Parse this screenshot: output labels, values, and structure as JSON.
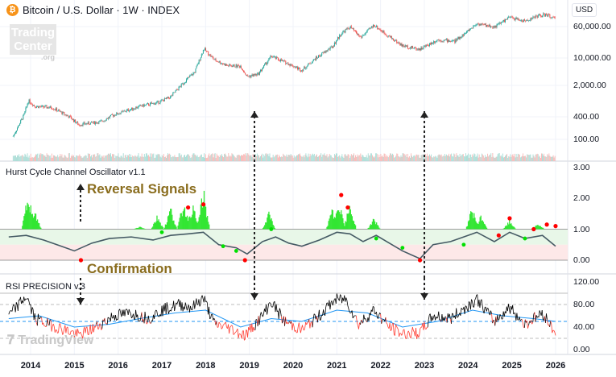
{
  "header": {
    "title": "Bitcoin / U.S. Dollar · 1W · INDEX",
    "currency": "USD",
    "icon": "bitcoin-icon"
  },
  "watermarks": {
    "trading_center": "Trading Center",
    "org": ".org",
    "tradingview": "TradingView"
  },
  "panes": {
    "oscillator_title": "Hurst Cycle Channel Oscillator v1.1",
    "rsi_title": "RSI PRECISION v.3"
  },
  "annotations": {
    "reversal": "Reversal Signals",
    "confirmation": "Confirmation"
  },
  "colors": {
    "up": "#26a69a",
    "down": "#ef5350",
    "osc_bar": "#33e633",
    "osc_line": "#455a64",
    "signal_red": "#ff0000",
    "signal_green": "#00e000",
    "rsi_line": "#000000",
    "rsi_low": "#ff3b30",
    "rsi_ma": "#2196f3",
    "annotation": "#8a6d1e"
  },
  "chart_data": [
    {
      "type": "candlestick",
      "title": "Bitcoin / U.S. Dollar · 1W · INDEX",
      "scale": "log",
      "y_ticks": [
        "60,000.00",
        "10,000.00",
        "2,000.00",
        "400.00",
        "100.00"
      ],
      "x_ticks": [
        "2014",
        "2015",
        "2016",
        "2017",
        "2018",
        "2019",
        "2020",
        "2021",
        "2022",
        "2023",
        "2024",
        "2025",
        "2026"
      ],
      "series": [
        [
          2013.6,
          120
        ],
        [
          2013.85,
          400
        ],
        [
          2013.95,
          900
        ],
        [
          2014.1,
          650
        ],
        [
          2014.5,
          600
        ],
        [
          2014.9,
          350
        ],
        [
          2015.1,
          230
        ],
        [
          2015.6,
          270
        ],
        [
          2015.9,
          400
        ],
        [
          2016.5,
          650
        ],
        [
          2016.9,
          800
        ],
        [
          2017.2,
          1100
        ],
        [
          2017.5,
          2500
        ],
        [
          2017.75,
          4500
        ],
        [
          2017.96,
          17000
        ],
        [
          2018.2,
          9000
        ],
        [
          2018.5,
          6500
        ],
        [
          2018.8,
          6300
        ],
        [
          2018.95,
          3500
        ],
        [
          2019.2,
          4000
        ],
        [
          2019.5,
          11000
        ],
        [
          2019.9,
          7200
        ],
        [
          2020.2,
          5000
        ],
        [
          2020.5,
          9500
        ],
        [
          2020.9,
          19000
        ],
        [
          2021.1,
          40000
        ],
        [
          2021.3,
          58000
        ],
        [
          2021.55,
          32000
        ],
        [
          2021.85,
          65000
        ],
        [
          2022.1,
          40000
        ],
        [
          2022.5,
          20000
        ],
        [
          2022.9,
          16500
        ],
        [
          2023.3,
          28000
        ],
        [
          2023.7,
          26000
        ],
        [
          2023.95,
          42000
        ],
        [
          2024.2,
          70000
        ],
        [
          2024.6,
          58000
        ],
        [
          2024.95,
          100000
        ],
        [
          2025.3,
          80000
        ],
        [
          2025.6,
          110000
        ],
        [
          2025.8,
          115000
        ],
        [
          2026.0,
          90000
        ]
      ]
    },
    {
      "type": "line",
      "title": "Hurst Cycle Channel Oscillator v1.1",
      "y_ticks": [
        "3.00",
        "2.00",
        "1.00",
        "0.00"
      ],
      "ylim": [
        -0.3,
        3.2
      ],
      "bands": [
        0.5,
        1.0
      ],
      "line": [
        [
          2013.5,
          0.75
        ],
        [
          2013.9,
          0.8
        ],
        [
          2014.3,
          0.65
        ],
        [
          2014.7,
          0.45
        ],
        [
          2015.0,
          0.3
        ],
        [
          2015.4,
          0.55
        ],
        [
          2015.8,
          0.7
        ],
        [
          2016.3,
          0.75
        ],
        [
          2016.8,
          0.65
        ],
        [
          2017.2,
          0.8
        ],
        [
          2017.6,
          0.85
        ],
        [
          2017.95,
          0.9
        ],
        [
          2018.3,
          0.5
        ],
        [
          2018.7,
          0.4
        ],
        [
          2018.95,
          0.2
        ],
        [
          2019.3,
          0.6
        ],
        [
          2019.6,
          0.75
        ],
        [
          2019.9,
          0.55
        ],
        [
          2020.2,
          0.45
        ],
        [
          2020.6,
          0.65
        ],
        [
          2021.0,
          0.9
        ],
        [
          2021.3,
          0.85
        ],
        [
          2021.6,
          0.6
        ],
        [
          2021.9,
          0.8
        ],
        [
          2022.2,
          0.55
        ],
        [
          2022.5,
          0.3
        ],
        [
          2022.9,
          0.05
        ],
        [
          2023.2,
          0.5
        ],
        [
          2023.6,
          0.6
        ],
        [
          2023.9,
          0.75
        ],
        [
          2024.2,
          0.9
        ],
        [
          2024.6,
          0.6
        ],
        [
          2024.95,
          0.9
        ],
        [
          2025.3,
          0.7
        ],
        [
          2025.7,
          0.8
        ],
        [
          2026.0,
          0.45
        ]
      ],
      "bars": [
        [
          2013.7,
          1.0
        ],
        [
          2013.95,
          2.4
        ],
        [
          2014.1,
          1.6
        ],
        [
          2016.5,
          1.1
        ],
        [
          2016.9,
          1.5
        ],
        [
          2017.2,
          1.8
        ],
        [
          2017.5,
          2.0
        ],
        [
          2017.7,
          1.9
        ],
        [
          2017.95,
          2.4
        ],
        [
          2019.45,
          1.6
        ],
        [
          2020.9,
          1.7
        ],
        [
          2021.05,
          2.1
        ],
        [
          2021.3,
          1.9
        ],
        [
          2021.85,
          1.4
        ],
        [
          2024.1,
          1.8
        ],
        [
          2024.3,
          1.5
        ],
        [
          2024.95,
          1.3
        ],
        [
          2025.6,
          1.2
        ]
      ],
      "red_dots": [
        [
          2015.15,
          0.0
        ],
        [
          2017.6,
          1.7
        ],
        [
          2017.95,
          1.8
        ],
        [
          2018.9,
          0.0
        ],
        [
          2021.1,
          2.1
        ],
        [
          2021.25,
          1.7
        ],
        [
          2022.9,
          0.0
        ],
        [
          2024.7,
          0.8
        ],
        [
          2024.95,
          1.35
        ],
        [
          2025.5,
          1.0
        ],
        [
          2025.8,
          1.15
        ],
        [
          2026.0,
          1.1
        ]
      ],
      "green_dots": [
        [
          2017.0,
          0.9
        ],
        [
          2018.4,
          0.45
        ],
        [
          2018.7,
          0.3
        ],
        [
          2019.5,
          1.0
        ],
        [
          2021.9,
          0.7
        ],
        [
          2022.5,
          0.4
        ],
        [
          2023.9,
          0.5
        ],
        [
          2025.3,
          0.7
        ]
      ]
    },
    {
      "type": "line",
      "title": "RSI PRECISION v.3",
      "y_ticks": [
        "120.00",
        "80.00",
        "40.00",
        "0.00"
      ],
      "ylim": [
        0,
        125
      ],
      "levels": [
        100,
        80,
        50,
        20
      ],
      "rsi": [
        [
          2013.5,
          60
        ],
        [
          2013.9,
          95
        ],
        [
          2014.1,
          55
        ],
        [
          2014.4,
          45
        ],
        [
          2014.8,
          35
        ],
        [
          2015.1,
          25
        ],
        [
          2015.5,
          40
        ],
        [
          2015.9,
          60
        ],
        [
          2016.3,
          65
        ],
        [
          2016.7,
          55
        ],
        [
          2017.0,
          70
        ],
        [
          2017.4,
          80
        ],
        [
          2017.7,
          75
        ],
        [
          2017.95,
          92
        ],
        [
          2018.2,
          45
        ],
        [
          2018.5,
          40
        ],
        [
          2018.9,
          25
        ],
        [
          2019.3,
          60
        ],
        [
          2019.5,
          85
        ],
        [
          2019.8,
          50
        ],
        [
          2020.2,
          35
        ],
        [
          2020.6,
          60
        ],
        [
          2020.95,
          88
        ],
        [
          2021.2,
          90
        ],
        [
          2021.5,
          45
        ],
        [
          2021.85,
          70
        ],
        [
          2022.2,
          40
        ],
        [
          2022.5,
          28
        ],
        [
          2022.9,
          30
        ],
        [
          2023.2,
          60
        ],
        [
          2023.6,
          55
        ],
        [
          2023.95,
          75
        ],
        [
          2024.2,
          90
        ],
        [
          2024.6,
          50
        ],
        [
          2024.95,
          75
        ],
        [
          2025.3,
          45
        ],
        [
          2025.7,
          65
        ],
        [
          2026.0,
          30
        ]
      ],
      "ma": [
        [
          2013.5,
          55
        ],
        [
          2014.2,
          60
        ],
        [
          2015.0,
          40
        ],
        [
          2015.8,
          45
        ],
        [
          2016.5,
          55
        ],
        [
          2017.3,
          65
        ],
        [
          2018.0,
          70
        ],
        [
          2018.8,
          40
        ],
        [
          2019.5,
          55
        ],
        [
          2020.2,
          50
        ],
        [
          2021.0,
          70
        ],
        [
          2021.7,
          65
        ],
        [
          2022.5,
          40
        ],
        [
          2023.3,
          50
        ],
        [
          2024.1,
          70
        ],
        [
          2024.8,
          60
        ],
        [
          2025.5,
          55
        ],
        [
          2026.0,
          50
        ]
      ]
    }
  ]
}
